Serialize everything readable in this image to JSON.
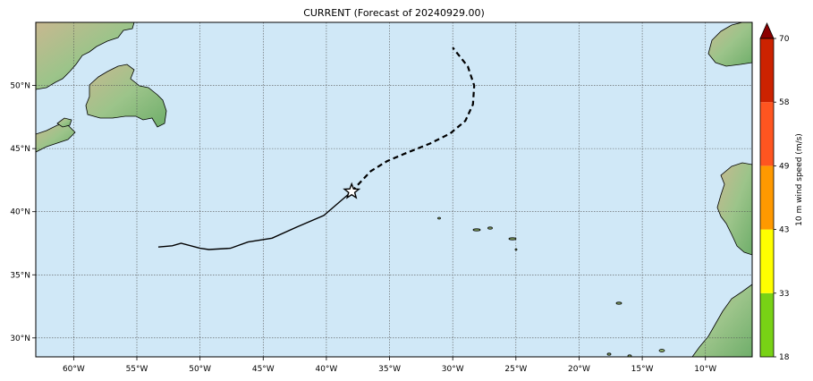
{
  "title": "CURRENT (Forecast of 20240929.00)",
  "map": {
    "lon_range": [
      -63,
      -6.3
    ],
    "lat_range": [
      28.5,
      55
    ],
    "lon_ticks": [
      {
        "lon": -60,
        "label": "60°W"
      },
      {
        "lon": -55,
        "label": "55°W"
      },
      {
        "lon": -50,
        "label": "50°W"
      },
      {
        "lon": -45,
        "label": "45°W"
      },
      {
        "lon": -40,
        "label": "40°W"
      },
      {
        "lon": -35,
        "label": "35°W"
      },
      {
        "lon": -30,
        "label": "30°W"
      },
      {
        "lon": -25,
        "label": "25°W"
      },
      {
        "lon": -20,
        "label": "20°W"
      },
      {
        "lon": -15,
        "label": "15°W"
      },
      {
        "lon": -10,
        "label": "10°W"
      }
    ],
    "lat_ticks": [
      {
        "lat": 50,
        "label": "50°N"
      },
      {
        "lat": 45,
        "label": "45°N"
      },
      {
        "lat": 40,
        "label": "40°N"
      },
      {
        "lat": 35,
        "label": "35°N"
      },
      {
        "lat": 30,
        "label": "30°N"
      }
    ],
    "grid": true,
    "ocean_color": "#d0e8f7",
    "land_color": "#a8c890",
    "past_track": [
      [
        -53.3,
        37.2
      ],
      [
        -52.2,
        37.3
      ],
      [
        -51.5,
        37.5
      ],
      [
        -50.0,
        37.1
      ],
      [
        -49.3,
        37.0
      ],
      [
        -47.6,
        37.1
      ],
      [
        -46.2,
        37.6
      ],
      [
        -44.3,
        37.9
      ],
      [
        -42.3,
        38.8
      ],
      [
        -40.2,
        39.7
      ],
      [
        -38.0,
        41.6
      ]
    ],
    "forecast_track": [
      [
        -38.0,
        41.6
      ],
      [
        -36.5,
        43.2
      ],
      [
        -35.2,
        44.0
      ],
      [
        -33.8,
        44.6
      ],
      [
        -31.8,
        45.4
      ],
      [
        -30.2,
        46.2
      ],
      [
        -29.0,
        47.2
      ],
      [
        -28.4,
        48.5
      ],
      [
        -28.3,
        50.0
      ],
      [
        -28.8,
        51.5
      ],
      [
        -30.0,
        53.0
      ]
    ],
    "current_position": {
      "lon": -38.0,
      "lat": 41.6,
      "marker": "star"
    }
  },
  "colorbar": {
    "label": "10 m wind speed (m/s)",
    "ticks": [
      "18",
      "33",
      "43",
      "49",
      "58",
      "70"
    ],
    "colors": [
      "#78d215",
      "#ffff00",
      "#ff9900",
      "#ff5520",
      "#cc2200"
    ],
    "extend_color": "#8b0000"
  }
}
